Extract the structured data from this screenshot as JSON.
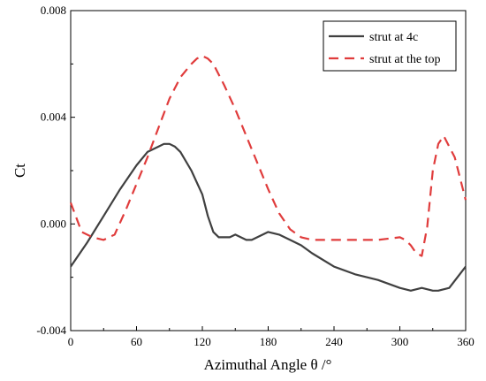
{
  "chart_data": {
    "type": "line",
    "xlabel": "Azimuthal Angle θ /°",
    "ylabel": "Ct",
    "xlim": [
      0,
      360
    ],
    "ylim": [
      -0.004,
      0.008
    ],
    "xticks": [
      0,
      60,
      120,
      180,
      240,
      300,
      360
    ],
    "xtick_labels": [
      "0",
      "60",
      "120",
      "180",
      "240",
      "300",
      "360"
    ],
    "yticks": [
      -0.004,
      0.0,
      0.004,
      0.008
    ],
    "ytick_labels": [
      "-0.004",
      "0.000",
      "0.004",
      "0.008"
    ],
    "grid": false,
    "legend_position": "top-right",
    "series": [
      {
        "name": "strut at 4c",
        "color": "#404040",
        "dash": "solid",
        "x": [
          0,
          15,
          30,
          45,
          60,
          70,
          80,
          85,
          90,
          95,
          100,
          110,
          120,
          125,
          130,
          135,
          140,
          145,
          150,
          155,
          160,
          165,
          170,
          175,
          180,
          190,
          200,
          210,
          220,
          240,
          260,
          280,
          300,
          310,
          320,
          330,
          335,
          345,
          360
        ],
        "y": [
          -0.0016,
          -0.0007,
          0.0003,
          0.0013,
          0.0022,
          0.0027,
          0.0029,
          0.003,
          0.003,
          0.0029,
          0.0027,
          0.002,
          0.0011,
          0.0003,
          -0.0003,
          -0.0005,
          -0.0005,
          -0.0005,
          -0.0004,
          -0.0005,
          -0.0006,
          -0.0006,
          -0.0005,
          -0.0004,
          -0.0003,
          -0.0004,
          -0.0006,
          -0.0008,
          -0.0011,
          -0.0016,
          -0.0019,
          -0.0021,
          -0.0024,
          -0.0025,
          -0.0024,
          -0.0025,
          -0.0025,
          -0.0024,
          -0.0016
        ]
      },
      {
        "name": "strut at the top",
        "color": "#e03c3c",
        "dash": "dashed",
        "x": [
          0,
          10,
          20,
          30,
          40,
          50,
          60,
          70,
          80,
          90,
          100,
          110,
          115,
          120,
          125,
          130,
          140,
          150,
          160,
          170,
          180,
          190,
          200,
          210,
          220,
          230,
          240,
          260,
          280,
          300,
          305,
          310,
          315,
          320,
          325,
          330,
          335,
          340,
          350,
          360
        ],
        "y": [
          0.0008,
          -0.0003,
          -0.0005,
          -0.0006,
          -0.0004,
          0.0005,
          0.0015,
          0.0025,
          0.0036,
          0.0047,
          0.0055,
          0.006,
          0.0062,
          0.0063,
          0.0062,
          0.006,
          0.0052,
          0.0043,
          0.0033,
          0.0023,
          0.0013,
          0.0004,
          -0.0002,
          -0.0005,
          -0.0006,
          -0.0006,
          -0.0006,
          -0.0006,
          -0.0006,
          -0.0005,
          -0.0006,
          -0.0008,
          -0.0011,
          -0.0012,
          -0.0001,
          0.002,
          0.003,
          0.0033,
          0.0025,
          0.0009
        ]
      }
    ]
  }
}
